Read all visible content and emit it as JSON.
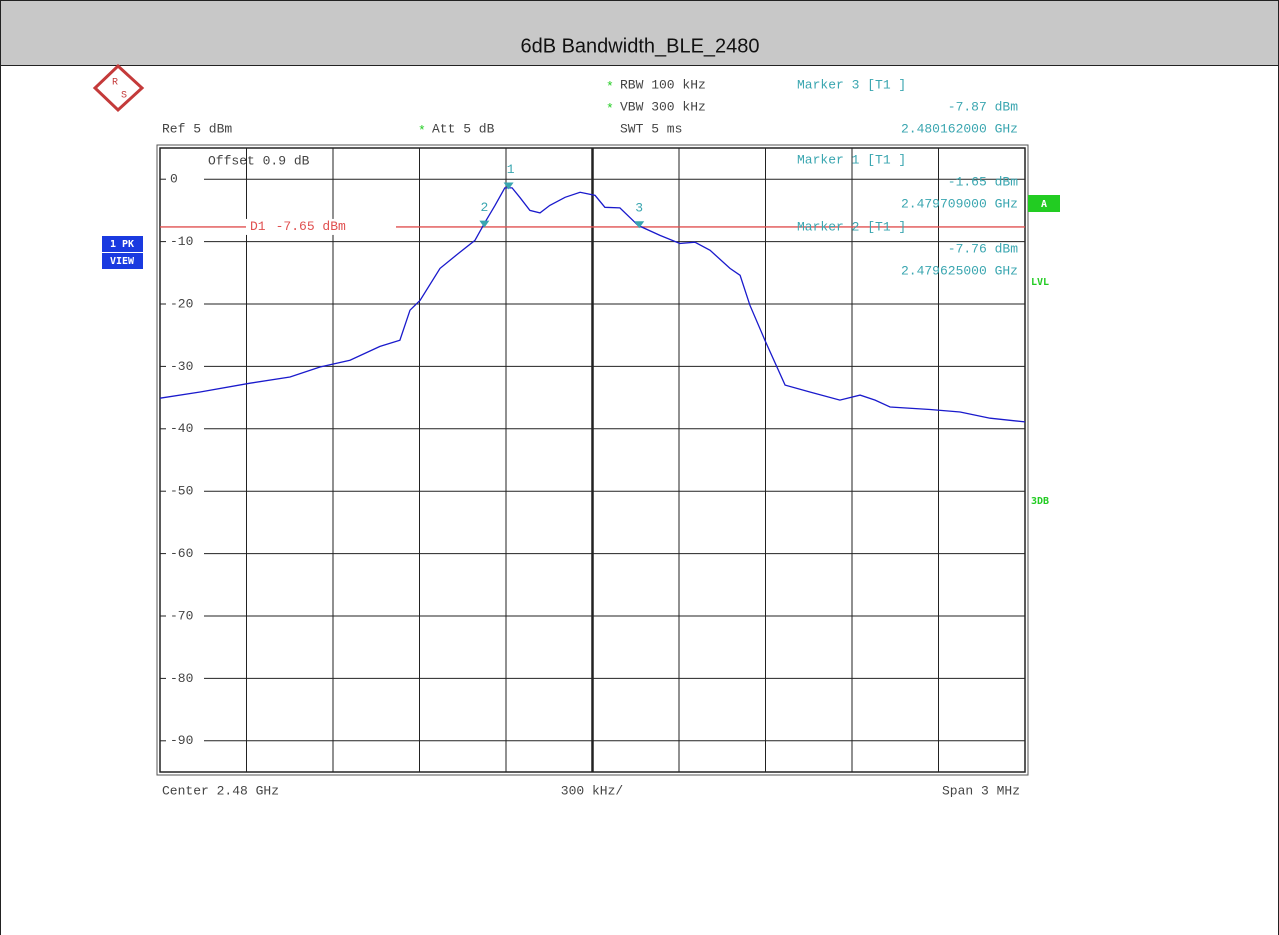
{
  "chart_data": {
    "type": "line",
    "title": "6dB Bandwidth_BLE_2480",
    "logo": [
      "R",
      "S"
    ],
    "header": [
      {
        "flag": "*",
        "text": "RBW  100 kHz"
      },
      {
        "flag": "*",
        "text": "VBW  300 kHz"
      },
      {
        "flag": "",
        "text": "SWT  5 ms"
      }
    ],
    "ref": "Ref   5 dBm",
    "att": {
      "flag": "*",
      "text": "Att   5 dB"
    },
    "offset": "Offset   0.9  dB",
    "footer": {
      "left": "Center  2.48 GHz",
      "middle": "300 kHz/",
      "right": "Span  3 MHz"
    },
    "side_left": [
      "1 PK",
      "VIEW"
    ],
    "side_right": {
      "box": "A",
      "labels": [
        "LVL",
        "3DB"
      ]
    },
    "ylim": [
      -95,
      5
    ],
    "yticks": [
      0,
      -10,
      -20,
      -30,
      -40,
      -50,
      -60,
      -70,
      -80,
      -90
    ],
    "xlim": [
      2.4785,
      2.4815
    ],
    "x": [
      2.4785,
      2.478639,
      2.478812,
      2.478951,
      2.479055,
      2.479159,
      2.479263,
      2.479332,
      2.479367,
      2.479402,
      2.479471,
      2.47954,
      2.479592,
      2.479627,
      2.479662,
      2.479696,
      2.479721,
      2.479748,
      2.479783,
      2.479818,
      2.479852,
      2.479905,
      2.479957,
      2.480009,
      2.480043,
      2.480095,
      2.480158,
      2.480234,
      2.480303,
      2.480355,
      2.480408,
      2.480477,
      2.480512,
      2.480546,
      2.480598,
      2.480668,
      2.480754,
      2.480858,
      2.480928,
      2.48098,
      2.481032,
      2.481171,
      2.481275,
      2.481379,
      2.4815
    ],
    "series": [
      {
        "name": "1 PK",
        "color": "#1a1acc",
        "values": [
          -35.1,
          -34.1,
          -32.7,
          -31.7,
          -30.1,
          -29.0,
          -26.8,
          -25.8,
          -21.0,
          -19.4,
          -14.3,
          -11.7,
          -9.8,
          -6.9,
          -4.2,
          -1.4,
          -1.4,
          -2.9,
          -5.0,
          -5.4,
          -4.2,
          -2.9,
          -2.1,
          -2.6,
          -4.5,
          -4.6,
          -7.4,
          -9.0,
          -10.3,
          -10.1,
          -11.4,
          -14.3,
          -15.4,
          -20.2,
          -25.8,
          -33.0,
          -34.1,
          -35.4,
          -34.6,
          -35.4,
          -36.5,
          -36.9,
          -37.3,
          -38.3,
          -38.9
        ]
      }
    ],
    "display_line": {
      "label": "D1",
      "value": -7.65,
      "value_label": "-7.65 dBm",
      "color": "#e05050"
    },
    "marker_color": "#3aa6b0",
    "markers": [
      {
        "number": "1",
        "label": "Marker 1 [T1 ]",
        "x": 2.479709,
        "x_label": "2.479709000 GHz",
        "value": -1.65,
        "value_label": "-1.65 dBm"
      },
      {
        "number": "2",
        "label": "Marker 2 [T1 ]",
        "x": 2.479625,
        "x_label": "2.479625000 GHz",
        "value": -7.76,
        "value_label": "-7.76 dBm"
      },
      {
        "number": "3",
        "label": "Marker 3 [T1 ]",
        "x": 2.480162,
        "x_label": "2.480162000 GHz",
        "value": -7.87,
        "value_label": "-7.87 dBm"
      }
    ]
  }
}
